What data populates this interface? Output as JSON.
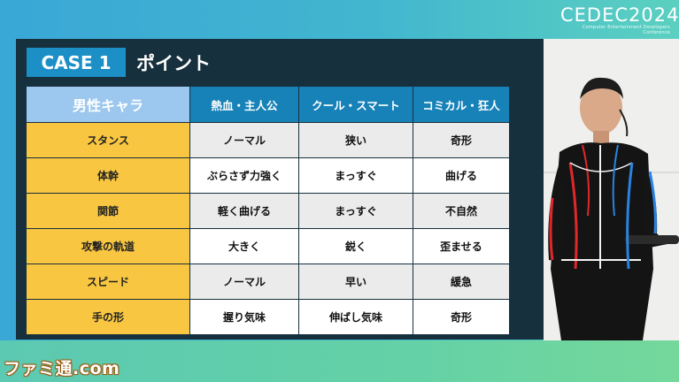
{
  "branding": {
    "conference_logo": "CEDEC2024",
    "conference_tagline": "Computer Entertainment Developers Conference",
    "watermark": "ファミ通.com"
  },
  "slide": {
    "case_label": "CASE 1",
    "title": "ポイント",
    "table": {
      "corner_header": "男性キャラ",
      "column_headers": [
        "熱血・主人公",
        "クール・スマート",
        "コミカル・狂人"
      ],
      "rows": [
        {
          "label": "スタンス",
          "values": [
            "ノーマル",
            "狭い",
            "奇形"
          ]
        },
        {
          "label": "体幹",
          "values": [
            "ぶらさず力強く",
            "まっすぐ",
            "曲げる"
          ]
        },
        {
          "label": "関節",
          "values": [
            "軽く曲げる",
            "まっすぐ",
            "不自然"
          ]
        },
        {
          "label": "攻撃の軌道",
          "values": [
            "大きく",
            "鋭く",
            "歪ませる"
          ]
        },
        {
          "label": "スピード",
          "values": [
            "ノーマル",
            "早い",
            "緩急"
          ]
        },
        {
          "label": "手の形",
          "values": [
            "握り気味",
            "伸ばし気味",
            "奇形"
          ]
        }
      ]
    }
  },
  "colors": {
    "slide_bg": "#17303e",
    "accent_blue": "#1b8fc6",
    "header_blue": "#1782b8",
    "row_header_yellow": "#f8c640",
    "corner_header_lightblue": "#9cc7ee"
  }
}
